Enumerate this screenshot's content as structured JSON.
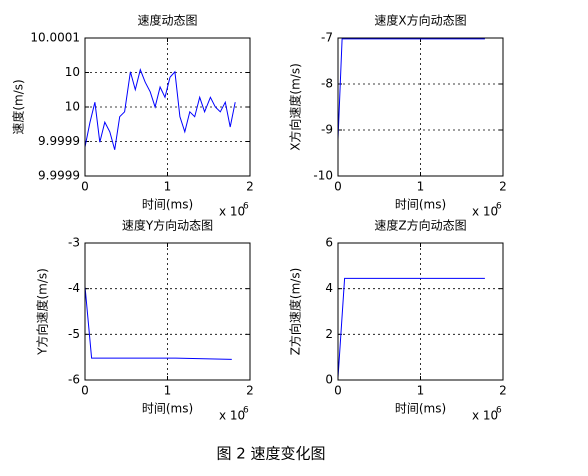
{
  "caption": "图 2 速度变化图",
  "chart_data": [
    {
      "type": "line",
      "title": "速度动态图",
      "xlabel": "时间(ms)",
      "ylabel": "速度(m/s)",
      "x_scale_label": "x 10",
      "x_scale_exponent": "6",
      "color": "#0000ff",
      "grid": true,
      "xlim": [
        0,
        2
      ],
      "xticks": [
        0,
        1,
        2
      ],
      "ylim": [
        9.9999,
        10.0001
      ],
      "yticks": [
        9.9999,
        {
          "value": 9.99995,
          "label": "9.9999"
        },
        10,
        {
          "value": 10.00005,
          "label": "10"
        },
        10.0001
      ],
      "x": [
        0,
        0.06,
        0.12,
        0.18,
        0.24,
        0.3,
        0.36,
        0.42,
        0.48,
        0.55,
        0.61,
        0.67,
        0.73,
        0.79,
        0.85,
        0.91,
        0.97,
        1.03,
        1.09,
        1.15,
        1.21,
        1.27,
        1.33,
        1.39,
        1.45,
        1.52,
        1.58,
        1.64,
        1.7,
        1.76,
        1.82
      ],
      "values": [
        9.999942,
        9.999978,
        10.000007,
        9.999949,
        9.999978,
        9.999964,
        9.999938,
        9.999986,
        9.999993,
        10.000051,
        10.000025,
        10.000054,
        10.000036,
        10.000022,
        10,
        10.000029,
        10.000014,
        10.000043,
        10.000051,
        9.999986,
        9.999964,
        9.999993,
        9.999986,
        10.000014,
        9.999993,
        10.000014,
        10,
        9.999993,
        10.000007,
        9.999971,
        10.000007
      ]
    },
    {
      "type": "line",
      "title": "速度X方向动态图",
      "xlabel": "时间(ms)",
      "ylabel": "X方向速度(m/s)",
      "x_scale_label": "x 10",
      "x_scale_exponent": "6",
      "color": "#0000ff",
      "grid": true,
      "xlim": [
        0,
        2
      ],
      "xticks": [
        0,
        1,
        2
      ],
      "ylim": [
        -10,
        -7
      ],
      "yticks": [
        -10,
        -9,
        -8,
        -7
      ],
      "x": [
        0,
        0.05,
        1.78
      ],
      "values": [
        -9.2,
        -7.02,
        -7.02
      ]
    },
    {
      "type": "line",
      "title": "速度Y方向动态图",
      "xlabel": "时间(ms)",
      "ylabel": "Y方向速度(m/s)",
      "x_scale_label": "x 10",
      "x_scale_exponent": "6",
      "color": "#0000ff",
      "grid": true,
      "xlim": [
        0,
        2
      ],
      "xticks": [
        0,
        1,
        2
      ],
      "ylim": [
        -6,
        -3
      ],
      "yticks": [
        -6,
        -5,
        -4,
        -3
      ],
      "x": [
        0,
        0.08,
        1.1,
        1.78
      ],
      "values": [
        -3.95,
        -5.52,
        -5.52,
        -5.55
      ]
    },
    {
      "type": "line",
      "title": "速度Z方向动态图",
      "xlabel": "时间(ms)",
      "ylabel": "Z方向速度(m/s)",
      "x_scale_label": "x 10",
      "x_scale_exponent": "6",
      "color": "#0000ff",
      "grid": true,
      "xlim": [
        0,
        2
      ],
      "xticks": [
        0,
        1,
        2
      ],
      "ylim": [
        0,
        6
      ],
      "yticks": [
        0,
        2,
        4,
        6
      ],
      "x": [
        0,
        0.08,
        1.78
      ],
      "values": [
        0.1,
        4.45,
        4.45
      ]
    }
  ]
}
